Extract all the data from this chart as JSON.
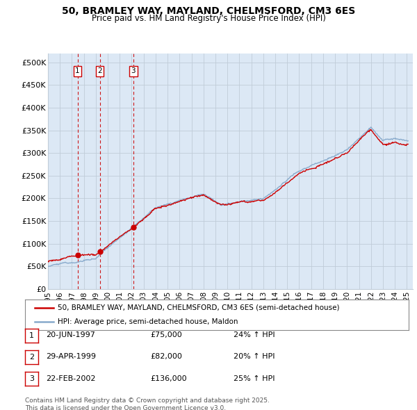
{
  "title": "50, BRAMLEY WAY, MAYLAND, CHELMSFORD, CM3 6ES",
  "subtitle": "Price paid vs. HM Land Registry's House Price Index (HPI)",
  "xlim_start": 1995.0,
  "xlim_end": 2025.5,
  "ylim": [
    0,
    520000
  ],
  "yticks": [
    0,
    50000,
    100000,
    150000,
    200000,
    250000,
    300000,
    350000,
    400000,
    450000,
    500000
  ],
  "ytick_labels": [
    "£0",
    "£50K",
    "£100K",
    "£150K",
    "£200K",
    "£250K",
    "£300K",
    "£350K",
    "£400K",
    "£450K",
    "£500K"
  ],
  "sales": [
    {
      "num": 1,
      "year": 1997.47,
      "price": 75000,
      "label": "20-JUN-1997",
      "amount": "£75,000",
      "pct": "24% ↑ HPI"
    },
    {
      "num": 2,
      "year": 1999.33,
      "price": 82000,
      "label": "29-APR-1999",
      "amount": "£82,000",
      "pct": "20% ↑ HPI"
    },
    {
      "num": 3,
      "year": 2002.14,
      "price": 136000,
      "label": "22-FEB-2002",
      "amount": "£136,000",
      "pct": "25% ↑ HPI"
    }
  ],
  "legend_line1": "50, BRAMLEY WAY, MAYLAND, CHELMSFORD, CM3 6ES (semi-detached house)",
  "legend_line2": "HPI: Average price, semi-detached house, Maldon",
  "footnote": "Contains HM Land Registry data © Crown copyright and database right 2025.\nThis data is licensed under the Open Government Licence v3.0.",
  "line_color_red": "#cc0000",
  "line_color_blue": "#88aacc",
  "bg_color": "#dce8f5",
  "plot_bg": "#ffffff",
  "grid_color": "#c0ccd8",
  "marker_box_color": "#cc0000",
  "xtick_years": [
    1995,
    1996,
    1997,
    1998,
    1999,
    2000,
    2001,
    2002,
    2003,
    2004,
    2005,
    2006,
    2007,
    2008,
    2009,
    2010,
    2011,
    2012,
    2013,
    2014,
    2015,
    2016,
    2017,
    2018,
    2019,
    2020,
    2021,
    2022,
    2023,
    2024,
    2025
  ]
}
